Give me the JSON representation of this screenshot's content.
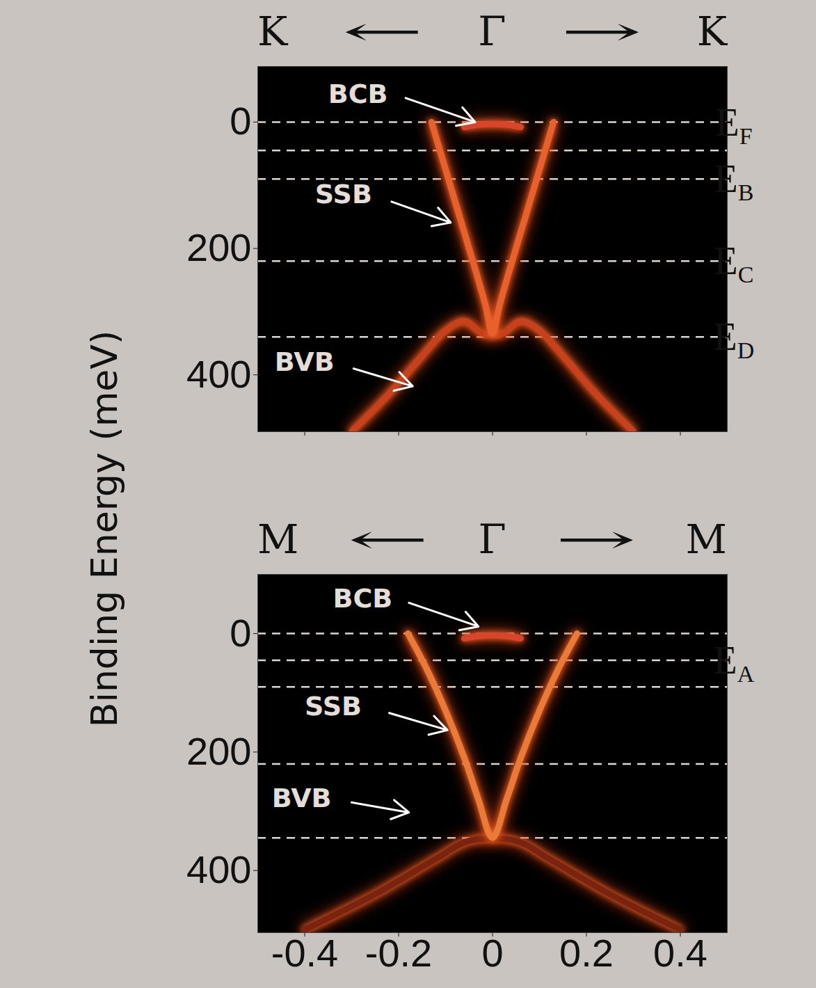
{
  "chart_data": [
    {
      "type": "line",
      "title": "K ← Γ → K",
      "ylabel": "Binding Energy (meV)",
      "xlim": [
        -0.5,
        0.5
      ],
      "xticks": [
        -0.4,
        -0.2,
        0,
        0.2,
        0.4
      ],
      "ylim": [
        490,
        -88
      ],
      "yticks": [
        0,
        200,
        400
      ],
      "tick_labels": "y",
      "hlines": [
        0,
        45,
        90,
        220,
        340
      ],
      "hline_labels": [
        {
          "value": 0,
          "label": "EF"
        },
        {
          "value": 90,
          "label": "EB"
        },
        {
          "value": 220,
          "label": "EC"
        },
        {
          "value": 340,
          "label": "ED"
        }
      ],
      "series": [
        {
          "name": "BVB",
          "color": "#c8401c",
          "line_style": "solid",
          "x": [
            -0.3,
            -0.22,
            -0.15,
            -0.1,
            -0.06,
            -0.02,
            0.02,
            0.06,
            0.1,
            0.15,
            0.22,
            0.3
          ],
          "values": [
            490,
            430,
            370,
            330,
            315,
            335,
            335,
            315,
            330,
            370,
            430,
            490
          ]
        },
        {
          "name": "SSB",
          "color": "#e8602c",
          "line_style": "solid",
          "x": [
            -0.13,
            -0.1,
            -0.07,
            -0.04,
            -0.015,
            0,
            0.015,
            0.04,
            0.07,
            0.1,
            0.13
          ],
          "values": [
            0,
            75,
            150,
            225,
            290,
            335,
            290,
            225,
            150,
            75,
            0
          ]
        },
        {
          "name": "BCB",
          "color": "#d8452a",
          "line_style": "solid",
          "x": [
            -0.06,
            -0.03,
            0,
            0.03,
            0.06
          ],
          "values": [
            8,
            4,
            3,
            4,
            8
          ]
        }
      ],
      "annotations": [
        {
          "text": "BCB",
          "x": -0.35,
          "y": -44,
          "arrow_from": [
            -0.185,
            -38
          ],
          "arrow_to": [
            -0.037,
            0
          ]
        },
        {
          "text": "SSB",
          "x": -0.378,
          "y": 115,
          "arrow_from": [
            -0.215,
            126
          ],
          "arrow_to": [
            -0.089,
            159
          ]
        },
        {
          "text": "BVB",
          "x": -0.464,
          "y": 380,
          "arrow_from": [
            -0.296,
            390
          ],
          "arrow_to": [
            -0.17,
            418
          ]
        }
      ]
    },
    {
      "type": "line",
      "title": "M ← Γ → M",
      "xlim": [
        -0.5,
        0.5
      ],
      "xticks": [
        -0.4,
        -0.2,
        0,
        0.2,
        0.4
      ],
      "ylim": [
        505,
        -100
      ],
      "yticks": [
        0,
        200,
        400
      ],
      "hlines": [
        0,
        45,
        90,
        220,
        345
      ],
      "hline_labels": [
        {
          "value": 45,
          "label": "EA"
        }
      ],
      "series": [
        {
          "name": "BVB",
          "color": "#7a2410",
          "line_style": "solid",
          "x": [
            -0.4,
            -0.25,
            -0.12,
            -0.05,
            0.05,
            0.12,
            0.25,
            0.4
          ],
          "values": [
            500,
            440,
            380,
            350,
            350,
            380,
            440,
            500
          ]
        },
        {
          "name": "SSB",
          "color": "#ea7a38",
          "line_style": "solid",
          "x": [
            -0.18,
            -0.14,
            -0.1,
            -0.06,
            -0.03,
            0,
            0.03,
            0.06,
            0.1,
            0.14,
            0.18
          ],
          "values": [
            0,
            60,
            130,
            210,
            280,
            345,
            280,
            210,
            130,
            60,
            0
          ]
        },
        {
          "name": "BCB",
          "color": "#d8452a",
          "line_style": "solid",
          "x": [
            -0.06,
            -0.03,
            0,
            0.03,
            0.06
          ],
          "values": [
            8,
            4,
            3,
            4,
            8
          ]
        }
      ],
      "annotations": [
        {
          "text": "BCB",
          "x": -0.34,
          "y": -58,
          "arrow_from": [
            -0.178,
            -52
          ],
          "arrow_to": [
            -0.03,
            -12
          ]
        },
        {
          "text": "SSB",
          "x": -0.4,
          "y": 124,
          "arrow_from": [
            -0.22,
            134
          ],
          "arrow_to": [
            -0.096,
            163
          ]
        },
        {
          "text": "BVB",
          "x": -0.47,
          "y": 279,
          "arrow_from": [
            -0.3,
            285
          ],
          "arrow_to": [
            -0.178,
            302
          ]
        }
      ]
    }
  ]
}
